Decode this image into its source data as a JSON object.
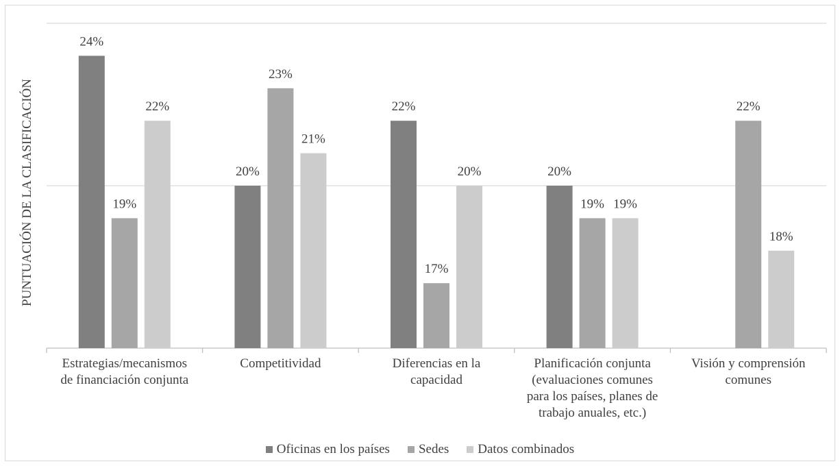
{
  "chart_data": {
    "type": "bar",
    "ylabel": "PUNTUACIÓN DE LA CLASIFICACIÓN",
    "ylim": [
      15,
      25
    ],
    "categories": [
      [
        "Estrategias/mecanismos",
        "de financiación conjunta"
      ],
      [
        "Competitividad"
      ],
      [
        "Diferencias en la",
        "capacidad"
      ],
      [
        "Planificación conjunta",
        "(evaluaciones comunes",
        "para los países, planes de",
        "trabajo anuales, etc.)"
      ],
      [
        "Visión y comprensión",
        "comunes"
      ]
    ],
    "series": [
      {
        "name": "Oficinas en los países",
        "color": "#808080",
        "values": [
          24,
          20,
          22,
          20,
          null
        ],
        "labels": [
          "24%",
          "20%",
          "22%",
          "20%",
          ""
        ]
      },
      {
        "name": "Sedes",
        "color": "#a6a6a6",
        "values": [
          19,
          23,
          17,
          19,
          22
        ],
        "labels": [
          "19%",
          "23%",
          "17%",
          "19%",
          "22%"
        ]
      },
      {
        "name": "Datos combinados",
        "color": "#cccccc",
        "values": [
          22,
          21,
          20,
          19,
          18
        ],
        "labels": [
          "22%",
          "21%",
          "20%",
          "19%",
          "18%"
        ]
      }
    ],
    "gridlines": [
      20,
      25
    ],
    "legend_position": "bottom"
  }
}
